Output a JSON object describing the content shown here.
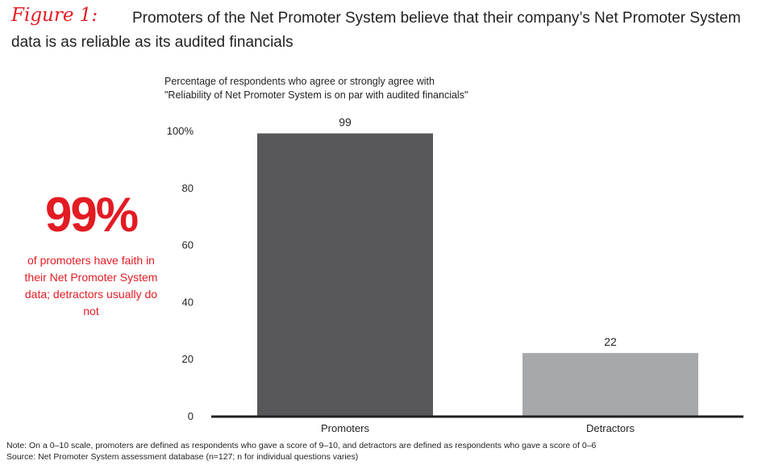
{
  "figure_label": "Figure 1:",
  "title": "Promoters of the Net Promoter System believe that their company’s Net Promoter System data is as reliable as its audited financials",
  "callout": {
    "stat": "99%",
    "text": "of promoters have faith in their Net Promoter System data; detractors usually do not"
  },
  "note": "Note: On a 0–10 scale, promoters are defined as respondents who gave a score of 9–10, and detractors are defined as respondents who gave a score of 0–6",
  "source": "Source: Net Promoter System assessment database (n=127; n for individual questions varies)",
  "colors": {
    "accent": "#e31b23",
    "promoters": "#58585a",
    "detractors": "#a7a8ab",
    "axis": "#231f20"
  },
  "chart_data": {
    "type": "bar",
    "subtitle_lines": [
      "Percentage of respondents who agree or strongly agree with",
      "\"Reliability of Net Promoter System is on par with audited financials\""
    ],
    "categories": [
      "Promoters",
      "Detractors"
    ],
    "values": [
      99,
      22
    ],
    "data_labels": [
      "99",
      "22"
    ],
    "ylim": [
      0,
      100
    ],
    "yticks": [
      0,
      20,
      40,
      60,
      80,
      100
    ],
    "ytick_labels": [
      "0",
      "20",
      "40",
      "60",
      "80",
      "100%"
    ],
    "grid": false,
    "xlabel": "",
    "ylabel": ""
  }
}
